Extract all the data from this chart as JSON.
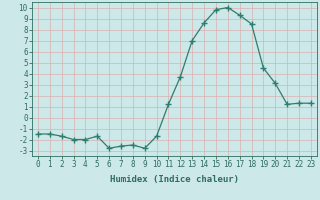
{
  "x": [
    0,
    1,
    2,
    3,
    4,
    5,
    6,
    7,
    8,
    9,
    10,
    11,
    12,
    13,
    14,
    15,
    16,
    17,
    18,
    19,
    20,
    21,
    22,
    23
  ],
  "y": [
    -1.5,
    -1.5,
    -1.7,
    -2.0,
    -2.0,
    -1.7,
    -2.8,
    -2.6,
    -2.5,
    -2.8,
    -1.7,
    1.2,
    3.7,
    7.0,
    8.6,
    9.8,
    10.0,
    9.3,
    8.5,
    4.5,
    3.1,
    1.2,
    1.3,
    1.3
  ],
  "line_color": "#2e7d6e",
  "marker": "+",
  "marker_size": 4,
  "marker_lw": 1.0,
  "bg_color": "#cde8e8",
  "grid_color": "#b0d0d0",
  "xlabel": "Humidex (Indice chaleur)",
  "xlim": [
    -0.5,
    23.5
  ],
  "ylim": [
    -3.5,
    10.5
  ],
  "yticks": [
    -3,
    -2,
    -1,
    0,
    1,
    2,
    3,
    4,
    5,
    6,
    7,
    8,
    9,
    10
  ],
  "xticks": [
    0,
    1,
    2,
    3,
    4,
    5,
    6,
    7,
    8,
    9,
    10,
    11,
    12,
    13,
    14,
    15,
    16,
    17,
    18,
    19,
    20,
    21,
    22,
    23
  ],
  "tick_label_color": "#2e6d60",
  "label_fontsize": 6.5,
  "tick_fontsize": 5.5
}
